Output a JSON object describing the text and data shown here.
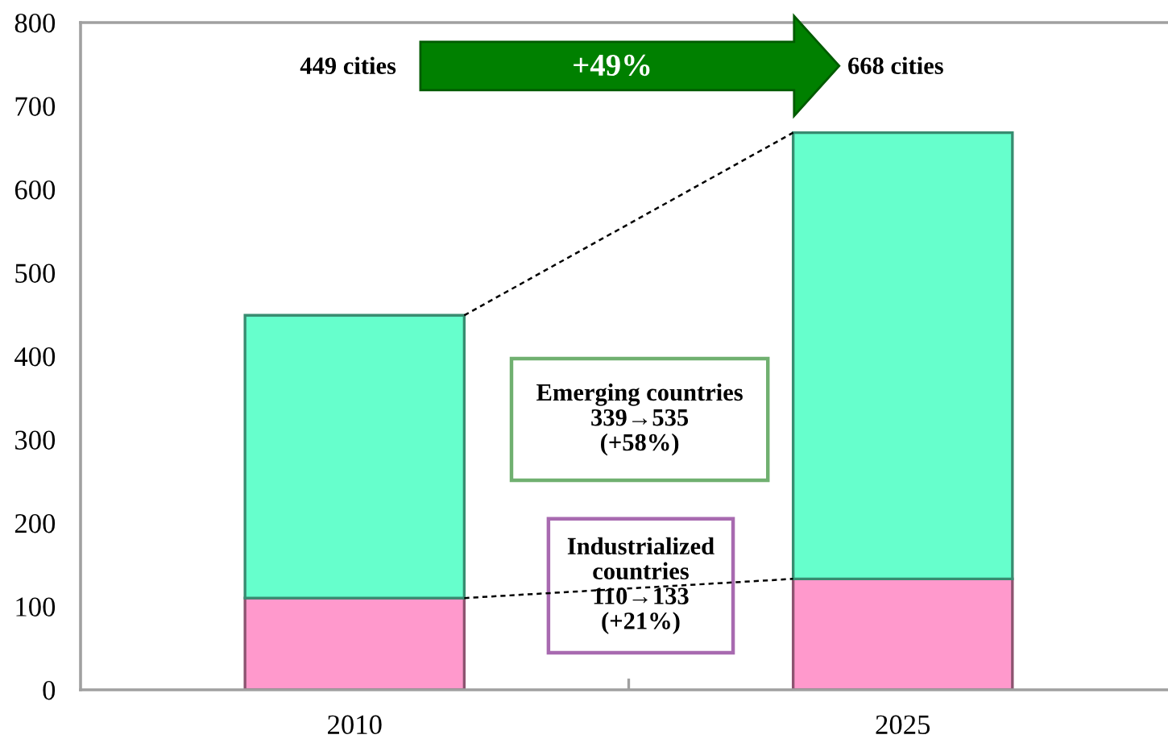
{
  "chart_data": {
    "type": "bar",
    "stacked": true,
    "categories": [
      "2010",
      "2025"
    ],
    "series": [
      {
        "color": "#ff99cc",
        "values": [
          110,
          133
        ]
      },
      {
        "color": "#66ffcc",
        "values": [
          339,
          535
        ]
      }
    ],
    "ylim": [
      0,
      800
    ],
    "yticks": [
      0,
      100,
      200,
      300,
      400,
      500,
      600,
      700,
      800
    ],
    "annotations": [
      "449 cities",
      "+49%",
      "668 cities",
      "Emerging countries\n339→535\n(+58%)",
      "Industrialized\ncountries\n110→133\n(+21%)"
    ]
  }
}
